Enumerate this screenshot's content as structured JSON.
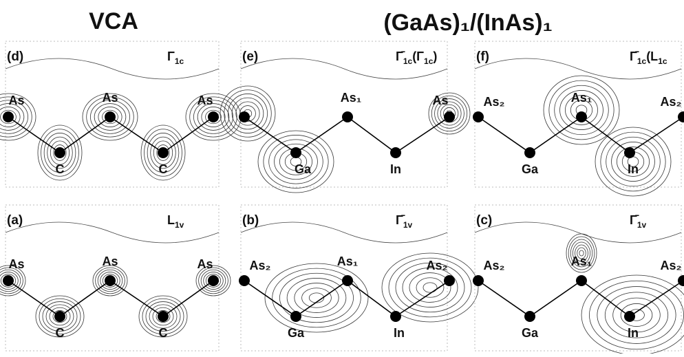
{
  "title": {
    "left": "VCA",
    "right": "(GaAs)₁/(InAs)₁"
  },
  "panels": [
    {
      "id": "(d)",
      "state": [
        {
          "text": "Γ"
        },
        {
          "text": "1c",
          "sub": true
        }
      ],
      "atoms": [
        "As",
        "As",
        "As",
        "C",
        "C"
      ]
    },
    {
      "id": "(e)",
      "state": [
        {
          "text": "Γ̄"
        },
        {
          "text": "1c",
          "sub": true
        },
        {
          "text": "(Γ"
        },
        {
          "text": "1c",
          "sub": true
        },
        {
          "text": ")"
        }
      ],
      "atoms": [
        "As₁",
        "As",
        "Ga",
        "In"
      ]
    },
    {
      "id": "(f)",
      "state": [
        {
          "text": "Γ̄"
        },
        {
          "text": "1c",
          "sub": true
        },
        {
          "text": "(L"
        },
        {
          "text": "1c",
          "sub": true
        }
      ],
      "atoms": [
        "As₂",
        "As₁",
        "As₂",
        "Ga",
        "In"
      ]
    },
    {
      "id": "(a)",
      "state": [
        {
          "text": "L"
        },
        {
          "text": "1v",
          "sub": true
        }
      ],
      "atoms": [
        "As",
        "As",
        "As",
        "C",
        "C"
      ]
    },
    {
      "id": "(b)",
      "state": [
        {
          "text": "Γ̄"
        },
        {
          "text": "1v",
          "sub": true
        }
      ],
      "atoms": [
        "As₂",
        "As₁",
        "As₂",
        "Ga",
        "In"
      ]
    },
    {
      "id": "(c)",
      "state": [
        {
          "text": "Γ̄"
        },
        {
          "text": "1v",
          "sub": true
        }
      ],
      "atoms": [
        "As₂",
        "As₁",
        "As₂",
        "Ga",
        "In"
      ]
    }
  ]
}
